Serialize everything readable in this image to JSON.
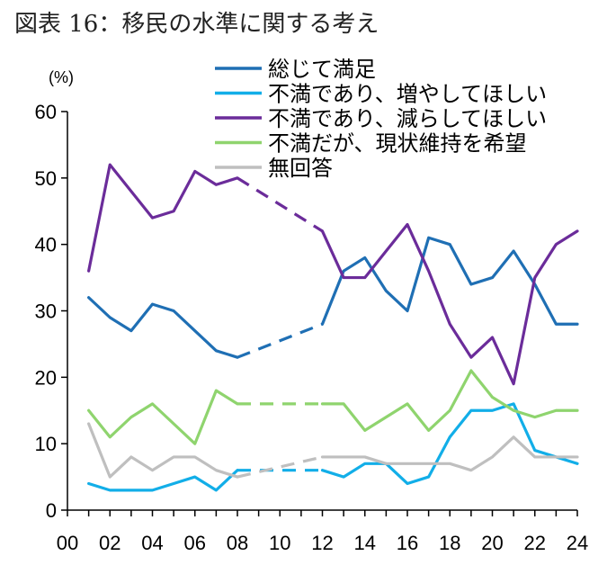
{
  "chart_data": {
    "type": "line",
    "title": "図表 16：移民の水準に関する考え",
    "unit_label": "(%)",
    "xlabel": "",
    "ylabel": "",
    "ylim": [
      0,
      60
    ],
    "yticks": [
      0,
      10,
      20,
      30,
      40,
      50,
      60
    ],
    "xlim": [
      0,
      24
    ],
    "xticks": [
      0,
      2,
      4,
      6,
      8,
      10,
      12,
      14,
      16,
      18,
      20,
      22,
      24
    ],
    "xtick_labels": [
      "00",
      "02",
      "04",
      "06",
      "08",
      "10",
      "12",
      "14",
      "16",
      "18",
      "20",
      "22",
      "24"
    ],
    "grid": false,
    "legend_position": "top",
    "dashed_interval": [
      8,
      12
    ],
    "x": [
      1,
      2,
      3,
      4,
      5,
      6,
      7,
      8,
      12,
      13,
      14,
      15,
      16,
      17,
      18,
      19,
      20,
      21,
      22,
      23,
      24
    ],
    "series": [
      {
        "name": "総じて満足",
        "color": "#1f6fb4",
        "values": [
          32,
          29,
          27,
          31,
          30,
          27,
          24,
          23,
          28,
          36,
          38,
          33,
          30,
          41,
          40,
          34,
          35,
          39,
          34,
          28,
          28
        ]
      },
      {
        "name": "不満であり、増やしてほしい",
        "color": "#12aee8",
        "values": [
          4,
          3,
          3,
          3,
          4,
          5,
          3,
          6,
          6,
          5,
          7,
          7,
          4,
          5,
          11,
          15,
          15,
          16,
          9,
          8,
          7
        ]
      },
      {
        "name": "不満であり、減らしてほしい",
        "color": "#6b2c9a",
        "values": [
          36,
          52,
          48,
          44,
          45,
          51,
          49,
          50,
          42,
          35,
          35,
          39,
          43,
          36,
          28,
          23,
          26,
          19,
          35,
          40,
          42
        ]
      },
      {
        "name": "不満だが、現状維持を希望",
        "color": "#8fd46e",
        "values": [
          15,
          11,
          14,
          16,
          13,
          10,
          18,
          16,
          16,
          16,
          12,
          14,
          16,
          12,
          15,
          21,
          17,
          15,
          14,
          15,
          15
        ]
      },
      {
        "name": "無回答",
        "color": "#bfbfbf",
        "values": [
          13,
          5,
          8,
          6,
          8,
          8,
          6,
          5,
          8,
          8,
          8,
          7,
          7,
          7,
          7,
          6,
          8,
          11,
          8,
          8,
          8
        ]
      }
    ]
  }
}
